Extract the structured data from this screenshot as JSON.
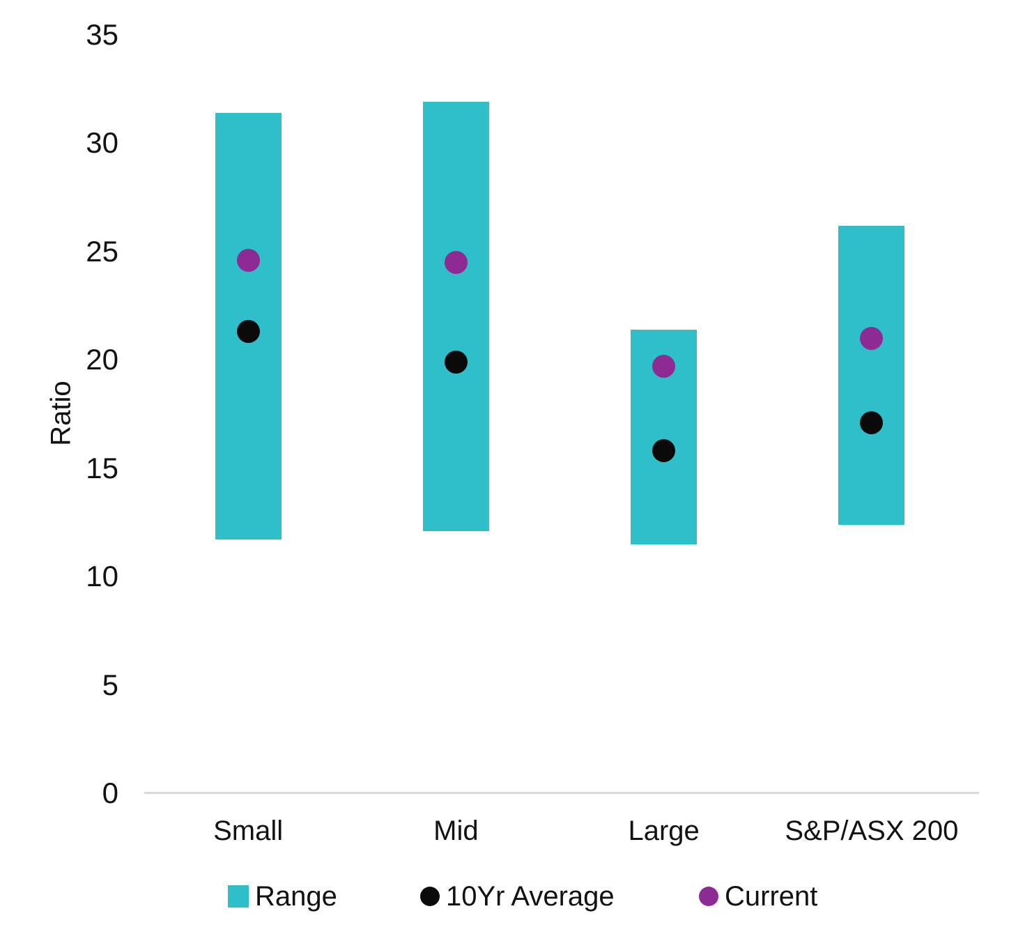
{
  "chart_data": {
    "type": "bar",
    "subtype": "floating-range-bars-with-dot-markers",
    "title": "",
    "ylabel": "Ratio",
    "xlabel": "",
    "ylim": [
      0,
      35
    ],
    "yticks": [
      35,
      30,
      25,
      20,
      15,
      10,
      5,
      0
    ],
    "grid": false,
    "legend_position": "bottom",
    "categories": [
      "Small",
      "Mid",
      "Large",
      "S&P/ASX 200"
    ],
    "series": [
      {
        "name": "Range",
        "marker": "square",
        "color": "#2fbfcb",
        "low": [
          11.7,
          12.1,
          11.5,
          12.4
        ],
        "high": [
          31.4,
          31.9,
          21.4,
          26.2
        ]
      },
      {
        "name": "10Yr Average",
        "marker": "circle",
        "color": "#0a0a0a",
        "values": [
          21.3,
          19.9,
          15.8,
          17.1
        ]
      },
      {
        "name": "Current",
        "marker": "circle",
        "color": "#8e2a93",
        "values": [
          24.6,
          24.5,
          19.7,
          21.0
        ]
      }
    ],
    "colors": {
      "axis_line": "#d9d9d9",
      "text": "#121212",
      "background": "#ffffff"
    }
  }
}
